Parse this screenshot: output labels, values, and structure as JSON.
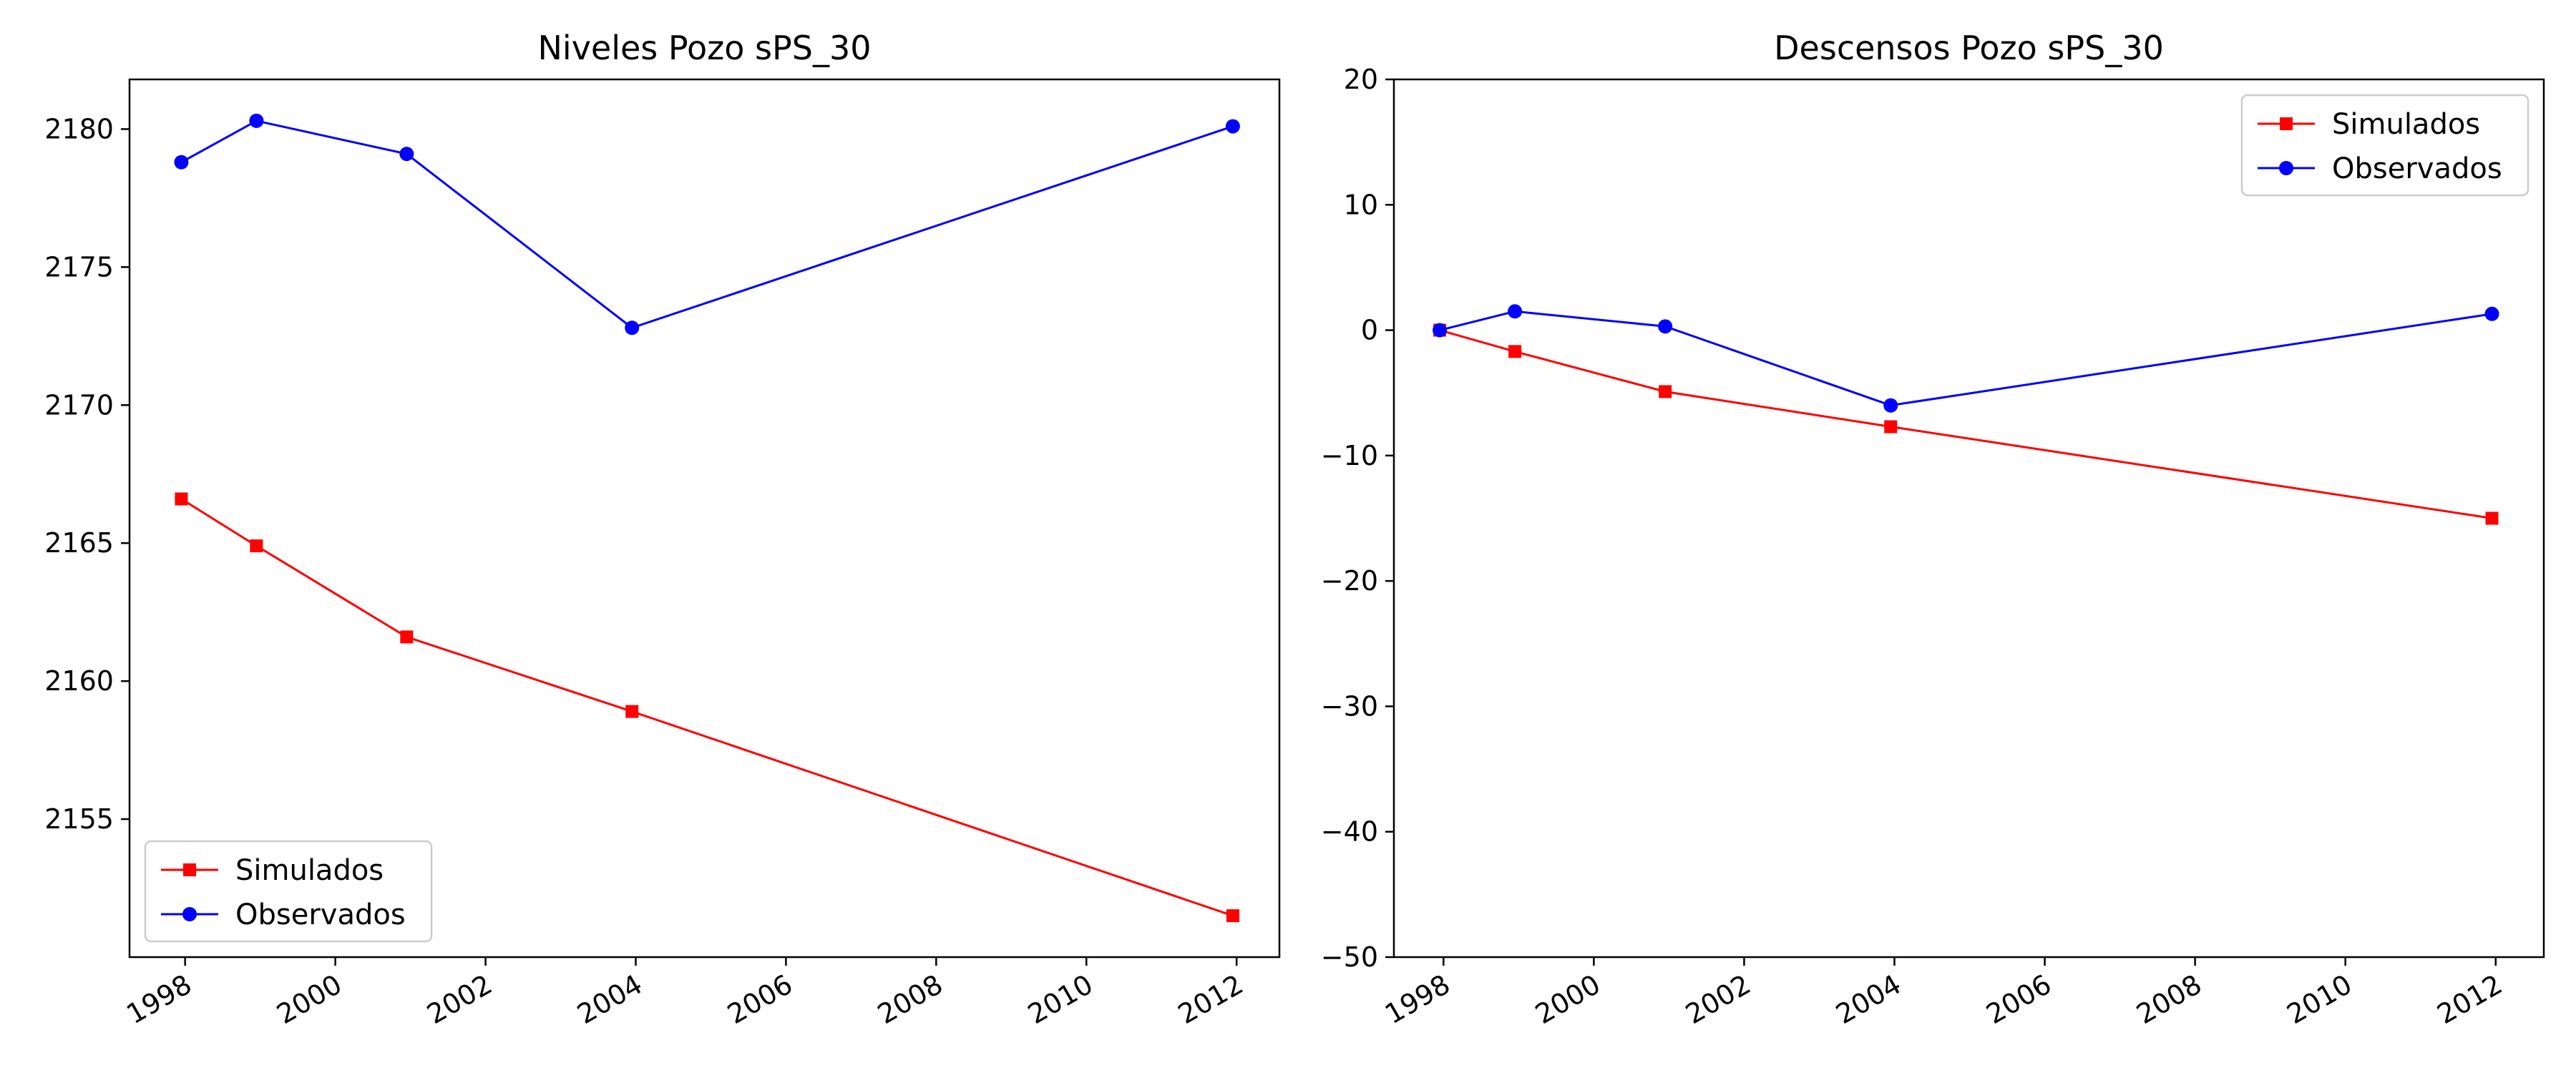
{
  "chart_data": [
    {
      "type": "line",
      "title": "Niveles Pozo sPS_30",
      "xlabel": "",
      "ylabel": "",
      "x_ticks": [
        "1998",
        "2000",
        "2002",
        "2004",
        "2006",
        "2008",
        "2010",
        "2012"
      ],
      "y_ticks": [
        "2155",
        "2160",
        "2165",
        "2170",
        "2175",
        "2180"
      ],
      "xlim": [
        1997.26,
        2012.57
      ],
      "ylim": [
        2150.0,
        2181.8
      ],
      "grid": false,
      "legend_position": "lower-left",
      "series": [
        {
          "name": "Simulados",
          "color": "#ff0000",
          "marker": "square",
          "x": [
            1997.95,
            1998.95,
            2000.95,
            2003.95,
            2011.95
          ],
          "y": [
            2166.6,
            2164.9,
            2161.6,
            2158.9,
            2151.5
          ]
        },
        {
          "name": "Observados",
          "color": "#0000ff",
          "marker": "circle",
          "x": [
            1997.95,
            1998.95,
            2000.95,
            2003.95,
            2011.95
          ],
          "y": [
            2178.8,
            2180.3,
            2179.1,
            2172.8,
            2180.1
          ]
        }
      ]
    },
    {
      "type": "line",
      "title": "Descensos Pozo sPS_30",
      "xlabel": "",
      "ylabel": "",
      "x_ticks": [
        "1998",
        "2000",
        "2002",
        "2004",
        "2006",
        "2008",
        "2010",
        "2012"
      ],
      "y_ticks": [
        "20",
        "10",
        "0",
        "−10",
        "−20",
        "−30",
        "−40",
        "−50"
      ],
      "xlim": [
        1997.34,
        2012.64
      ],
      "ylim": [
        -50,
        20
      ],
      "grid": false,
      "legend_position": "upper-right",
      "series": [
        {
          "name": "Simulados",
          "color": "#ff0000",
          "marker": "square",
          "x": [
            1997.95,
            1998.95,
            2000.95,
            2003.95,
            2011.95
          ],
          "y": [
            0.0,
            -1.7,
            -4.9,
            -7.7,
            -15.0
          ]
        },
        {
          "name": "Observados",
          "color": "#0000ff",
          "marker": "circle",
          "x": [
            1997.95,
            1998.95,
            2000.95,
            2003.95,
            2011.95
          ],
          "y": [
            0.0,
            1.5,
            0.3,
            -6.0,
            1.3
          ]
        }
      ]
    }
  ]
}
